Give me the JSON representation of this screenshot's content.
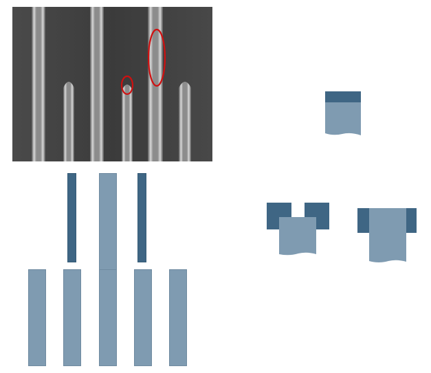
{
  "colors": {
    "light_block": "#7f9bb1",
    "dark_block": "#3f6684",
    "highlight": "#d01010",
    "background": "#ffffff"
  },
  "sem_image": {
    "highlight_marks": 2
  }
}
